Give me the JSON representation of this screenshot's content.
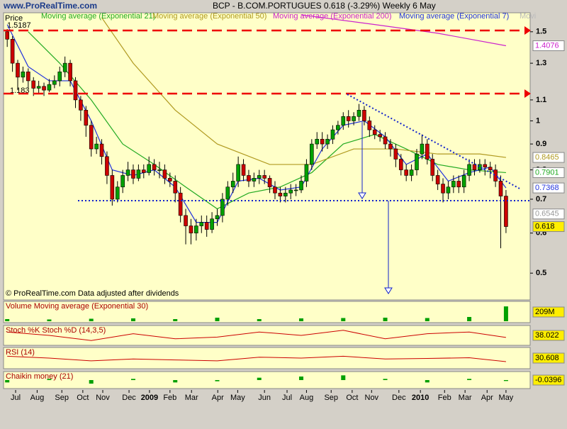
{
  "chart_data": {
    "type": "candlestick",
    "site": "www.ProRealTime.com",
    "title": "BCP - B.COM.PORTUGUES   0.618 (-3.29%)   Weekly  6 May",
    "price_label": "Price",
    "footer": "© ProRealTime.com  Data adjusted after dividends",
    "annotations": [
      "1.5187",
      "1.183"
    ],
    "legend_overflow": "Movi",
    "log_scale": true,
    "up_color": "#00a000",
    "down_color": "#cc0000",
    "xlim": [
      -0.7,
      99.6
    ],
    "xticks": [
      {
        "value": 1.6,
        "label": "Jul"
      },
      {
        "value": 5.7,
        "label": "Aug"
      },
      {
        "value": 10.4,
        "label": "Sep"
      },
      {
        "value": 14.4,
        "label": "Oct"
      },
      {
        "value": 18.2,
        "label": "Nov"
      },
      {
        "value": 23.2,
        "label": "Dec"
      },
      {
        "value": 27.1,
        "label": "2009"
      },
      {
        "value": 31,
        "label": "Feb"
      },
      {
        "value": 35.1,
        "label": "Mar"
      },
      {
        "value": 40.1,
        "label": "Apr"
      },
      {
        "value": 43.9,
        "label": "May"
      },
      {
        "value": 49,
        "label": "Jun"
      },
      {
        "value": 53.3,
        "label": "Jul"
      },
      {
        "value": 57,
        "label": "Aug"
      },
      {
        "value": 61.7,
        "label": "Sep"
      },
      {
        "value": 65.7,
        "label": "Oct"
      },
      {
        "value": 69.4,
        "label": "Nov"
      },
      {
        "value": 74.6,
        "label": "Dec"
      },
      {
        "value": 78.7,
        "label": "2010"
      },
      {
        "value": 83.3,
        "label": "Feb"
      },
      {
        "value": 87.2,
        "label": "Mar"
      },
      {
        "value": 91.4,
        "label": "Apr"
      },
      {
        "value": 95,
        "label": "May"
      }
    ],
    "ylim": [
      0.444,
      1.625
    ],
    "yticks": [
      0.5,
      0.6,
      0.7,
      0.8,
      0.9,
      1,
      1.1,
      1.3,
      1.5
    ],
    "open": [
      1.5,
      1.45,
      1.3,
      1.22,
      1.25,
      1.2,
      1.16,
      1.17,
      1.15,
      1.18,
      1.2,
      1.25,
      1.3,
      1.2,
      1.1,
      1.05,
      0.98,
      0.88,
      0.9,
      0.85,
      0.78,
      0.7,
      0.74,
      0.78,
      0.8,
      0.77,
      0.8,
      0.79,
      0.82,
      0.8,
      0.8,
      0.77,
      0.76,
      0.72,
      0.65,
      0.62,
      0.6,
      0.62,
      0.63,
      0.61,
      0.64,
      0.65,
      0.7,
      0.74,
      0.76,
      0.82,
      0.78,
      0.76,
      0.77,
      0.78,
      0.77,
      0.74,
      0.72,
      0.71,
      0.72,
      0.73,
      0.73,
      0.76,
      0.82,
      0.9,
      0.92,
      0.9,
      0.92,
      0.96,
      0.98,
      1.02,
      1.0,
      1.02,
      1.05,
      1.0,
      0.96,
      0.94,
      0.93,
      0.9,
      0.88,
      0.84,
      0.8,
      0.78,
      0.8,
      0.86,
      0.9,
      0.84,
      0.78,
      0.75,
      0.72,
      0.74,
      0.76,
      0.74,
      0.78,
      0.82,
      0.8,
      0.82,
      0.81,
      0.8,
      0.76,
      0.71
    ],
    "high": [
      1.5187,
      1.47,
      1.32,
      1.28,
      1.27,
      1.22,
      1.2,
      1.19,
      1.21,
      1.23,
      1.28,
      1.34,
      1.32,
      1.22,
      1.12,
      1.07,
      1.0,
      0.93,
      0.92,
      0.87,
      0.8,
      0.76,
      0.8,
      0.83,
      0.82,
      0.82,
      0.82,
      0.85,
      0.84,
      0.83,
      0.82,
      0.79,
      0.78,
      0.74,
      0.67,
      0.64,
      0.64,
      0.65,
      0.65,
      0.66,
      0.67,
      0.72,
      0.76,
      0.79,
      0.85,
      0.84,
      0.8,
      0.79,
      0.8,
      0.8,
      0.78,
      0.76,
      0.74,
      0.74,
      0.75,
      0.75,
      0.78,
      0.84,
      0.92,
      0.95,
      0.95,
      0.94,
      0.98,
      1.0,
      1.04,
      1.05,
      1.04,
      1.08,
      1.07,
      1.02,
      0.98,
      0.96,
      0.95,
      0.92,
      0.9,
      0.86,
      0.82,
      0.82,
      0.88,
      0.94,
      0.92,
      0.86,
      0.8,
      0.77,
      0.76,
      0.78,
      0.78,
      0.8,
      0.84,
      0.84,
      0.84,
      0.84,
      0.83,
      0.82,
      0.78,
      0.73
    ],
    "low": [
      1.4,
      1.25,
      1.15,
      1.19,
      1.16,
      1.12,
      1.13,
      1.12,
      1.14,
      1.16,
      1.17,
      1.22,
      1.17,
      1.06,
      1.0,
      0.93,
      0.85,
      0.86,
      0.82,
      0.75,
      0.68,
      0.69,
      0.72,
      0.76,
      0.75,
      0.76,
      0.77,
      0.78,
      0.78,
      0.77,
      0.75,
      0.74,
      0.69,
      0.63,
      0.57,
      0.57,
      0.58,
      0.6,
      0.59,
      0.6,
      0.62,
      0.63,
      0.68,
      0.72,
      0.74,
      0.76,
      0.74,
      0.74,
      0.75,
      0.75,
      0.72,
      0.7,
      0.69,
      0.69,
      0.7,
      0.71,
      0.72,
      0.74,
      0.8,
      0.88,
      0.87,
      0.88,
      0.9,
      0.94,
      0.96,
      0.97,
      0.98,
      1.0,
      0.98,
      0.93,
      0.92,
      0.91,
      0.88,
      0.85,
      0.81,
      0.78,
      0.76,
      0.76,
      0.78,
      0.84,
      0.82,
      0.76,
      0.73,
      0.69,
      0.7,
      0.72,
      0.72,
      0.72,
      0.76,
      0.78,
      0.79,
      0.78,
      0.77,
      0.74,
      0.56,
      0.6
    ],
    "close": [
      1.45,
      1.3,
      1.22,
      1.25,
      1.2,
      1.16,
      1.17,
      1.15,
      1.18,
      1.2,
      1.25,
      1.3,
      1.2,
      1.1,
      1.05,
      0.98,
      0.88,
      0.9,
      0.85,
      0.78,
      0.7,
      0.74,
      0.78,
      0.8,
      0.77,
      0.8,
      0.79,
      0.82,
      0.8,
      0.8,
      0.77,
      0.76,
      0.72,
      0.65,
      0.62,
      0.6,
      0.62,
      0.63,
      0.61,
      0.64,
      0.65,
      0.7,
      0.74,
      0.76,
      0.82,
      0.78,
      0.76,
      0.77,
      0.78,
      0.77,
      0.74,
      0.72,
      0.71,
      0.72,
      0.73,
      0.73,
      0.76,
      0.82,
      0.9,
      0.92,
      0.9,
      0.92,
      0.96,
      0.98,
      1.02,
      1.0,
      1.02,
      1.05,
      1.0,
      0.96,
      0.94,
      0.93,
      0.9,
      0.88,
      0.84,
      0.8,
      0.78,
      0.8,
      0.86,
      0.9,
      0.84,
      0.78,
      0.75,
      0.72,
      0.74,
      0.76,
      0.74,
      0.78,
      0.82,
      0.8,
      0.82,
      0.81,
      0.8,
      0.76,
      0.71,
      0.618
    ],
    "series": [
      {
        "name": "Moving average (Exponential 21)",
        "color": "#22aa22",
        "x": [
          4,
          10,
          16,
          22,
          28,
          34,
          40,
          46,
          52,
          58,
          64,
          70,
          76,
          82,
          88,
          95
        ],
        "values": [
          1.5,
          1.3,
          1.1,
          0.9,
          0.82,
          0.74,
          0.67,
          0.72,
          0.74,
          0.79,
          0.9,
          0.94,
          0.88,
          0.82,
          0.8,
          0.7901
        ]
      },
      {
        "name": "Moving average (Exponential 50)",
        "color": "#b09a20",
        "x": [
          18,
          24,
          32,
          40,
          50,
          58,
          66,
          74,
          82,
          90,
          95
        ],
        "values": [
          1.6,
          1.3,
          1.05,
          0.9,
          0.82,
          0.82,
          0.88,
          0.88,
          0.86,
          0.86,
          0.8465
        ]
      },
      {
        "name": "Moving average (Exponential 200)",
        "color": "#cc22cc",
        "x": [
          56,
          70,
          82,
          95
        ],
        "values": [
          1.62,
          1.55,
          1.49,
          1.4076
        ]
      },
      {
        "name": "Moving average (Exponential 7)",
        "color": "#2233dd",
        "x": [
          0,
          4,
          8,
          12,
          16,
          20,
          24,
          28,
          32,
          36,
          40,
          44,
          48,
          52,
          56,
          60,
          64,
          68,
          72,
          76,
          80,
          84,
          88,
          92,
          95
        ],
        "values": [
          1.55,
          1.28,
          1.2,
          1.2,
          1.0,
          0.8,
          0.78,
          0.8,
          0.74,
          0.63,
          0.63,
          0.76,
          0.77,
          0.73,
          0.74,
          0.88,
          0.98,
          1.0,
          0.93,
          0.82,
          0.86,
          0.76,
          0.79,
          0.81,
          0.7368
        ]
      }
    ],
    "tags": [
      {
        "value": 1.4076,
        "color": "#cc22cc",
        "bg": "#ffffff"
      },
      {
        "value": 0.8465,
        "color": "#b09a20",
        "bg": "#ffffff"
      },
      {
        "value": 0.7901,
        "color": "#22aa22",
        "bg": "#ffffff"
      },
      {
        "value": 0.7368,
        "color": "#2233dd",
        "bg": "#ffffff"
      },
      {
        "value": 0.6545,
        "color": "#999999",
        "bg": "#ffffff"
      },
      {
        "value": 0.618,
        "color": "#000000",
        "bg": "#ffee00"
      }
    ],
    "indicators": [
      {
        "type": "bar",
        "title": "Volume Moving average (Exponential 30)",
        "color": "#cc0000",
        "ylim": [
          0,
          260
        ],
        "x": [
          0,
          8,
          16,
          24,
          32,
          40,
          48,
          56,
          64,
          72,
          80,
          88,
          95
        ],
        "values": [
          30,
          25,
          35,
          40,
          30,
          50,
          30,
          40,
          45,
          50,
          45,
          60,
          209
        ],
        "tag": {
          "value": 209,
          "label": "209M"
        }
      },
      {
        "type": "line",
        "title": "Stoch %K Stoch %D (14,3,5)",
        "color": "#cc0000",
        "ylim": [
          0,
          100
        ],
        "x": [
          0,
          8,
          16,
          24,
          32,
          40,
          48,
          56,
          64,
          72,
          80,
          88,
          95
        ],
        "values": [
          70,
          50,
          20,
          60,
          30,
          40,
          70,
          50,
          80,
          30,
          60,
          70,
          38.022
        ],
        "tag": {
          "value": 38.022,
          "label": "38.022"
        }
      },
      {
        "type": "line",
        "title": "RSI (14)",
        "color": "#cc0000",
        "ylim": [
          0,
          100
        ],
        "x": [
          0,
          8,
          16,
          24,
          32,
          40,
          48,
          56,
          64,
          72,
          80,
          88,
          95
        ],
        "values": [
          60,
          50,
          35,
          45,
          40,
          35,
          55,
          50,
          60,
          45,
          48,
          52,
          30.608
        ],
        "tag": {
          "value": 30.608,
          "label": "30.608"
        }
      },
      {
        "type": "bar",
        "title": "Chaikin money (21)",
        "color": "#00a000",
        "ylim": [
          -0.3,
          0.3
        ],
        "x": [
          0,
          8,
          16,
          24,
          32,
          40,
          48,
          56,
          64,
          72,
          80,
          88,
          95
        ],
        "values": [
          -0.1,
          0.05,
          -0.15,
          0.05,
          -0.1,
          -0.05,
          0.1,
          0.15,
          0.2,
          0.05,
          -0.1,
          0.05,
          -0.0396
        ],
        "tag": {
          "value": -0.0396,
          "label": "-0.0396"
        }
      }
    ]
  }
}
